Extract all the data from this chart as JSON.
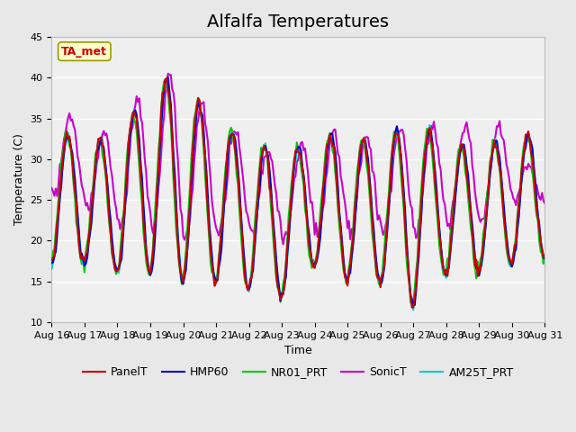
{
  "title": "Alfalfa Temperatures",
  "xlabel": "Time",
  "ylabel": "Temperature (C)",
  "xlim_start": 0,
  "xlim_end": 360,
  "ylim": [
    10,
    45
  ],
  "yticks": [
    10,
    15,
    20,
    25,
    30,
    35,
    40,
    45
  ],
  "x_tick_labels": [
    "Aug 16",
    "Aug 17",
    "Aug 18",
    "Aug 19",
    "Aug 20",
    "Aug 21",
    "Aug 22",
    "Aug 23",
    "Aug 24",
    "Aug 25",
    "Aug 26",
    "Aug 27",
    "Aug 28",
    "Aug 29",
    "Aug 30",
    "Aug 31"
  ],
  "x_tick_positions": [
    0,
    24,
    48,
    72,
    96,
    120,
    144,
    168,
    192,
    216,
    240,
    264,
    288,
    312,
    336,
    360
  ],
  "series_colors": {
    "PanelT": "#cc0000",
    "HMP60": "#0000cc",
    "NR01_PRT": "#00cc00",
    "SonicT": "#cc00cc",
    "AM25T_PRT": "#00cccc"
  },
  "series_linewidths": {
    "PanelT": 1.5,
    "HMP60": 1.5,
    "NR01_PRT": 1.5,
    "SonicT": 1.5,
    "AM25T_PRT": 1.5
  },
  "legend_label": "TA_met",
  "legend_box_facecolor": "#ffffcc",
  "legend_box_edgecolor": "#999900",
  "legend_text_color": "#cc0000",
  "figure_facecolor": "#e8e8e8",
  "axes_facecolor": "#efefef",
  "title_fontsize": 14,
  "axis_fontsize": 9,
  "tick_fontsize": 8,
  "legend_fontsize": 9,
  "daily_maxes_base": [
    33,
    33,
    32,
    40,
    40,
    34,
    33,
    30,
    33,
    33,
    32,
    35,
    32,
    31,
    33,
    33
  ],
  "daily_mins_base": [
    17,
    17,
    16,
    16,
    15,
    15,
    14,
    13,
    17,
    15,
    15,
    12,
    16,
    16,
    17,
    18
  ],
  "sonic_maxes": [
    37,
    34,
    33,
    40,
    41,
    34,
    33,
    30,
    33,
    33,
    33,
    35,
    34,
    34,
    34,
    25
  ],
  "sonic_mins": [
    26,
    24,
    22,
    22,
    20,
    21,
    21,
    20,
    21,
    21,
    21,
    21,
    22,
    22,
    25,
    25
  ]
}
